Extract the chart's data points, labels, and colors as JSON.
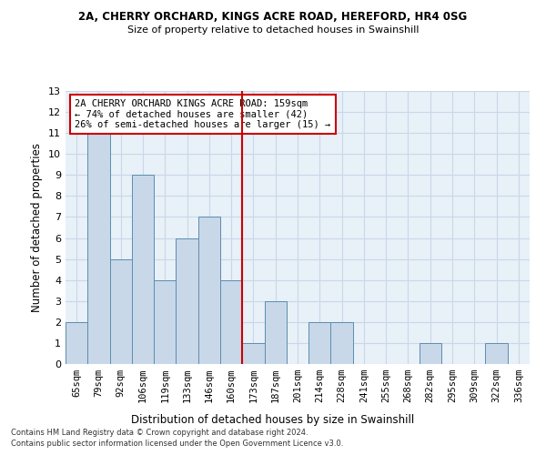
{
  "title1": "2A, CHERRY ORCHARD, KINGS ACRE ROAD, HEREFORD, HR4 0SG",
  "title2": "Size of property relative to detached houses in Swainshill",
  "xlabel": "Distribution of detached houses by size in Swainshill",
  "ylabel": "Number of detached properties",
  "categories": [
    "65sqm",
    "79sqm",
    "92sqm",
    "106sqm",
    "119sqm",
    "133sqm",
    "146sqm",
    "160sqm",
    "173sqm",
    "187sqm",
    "201sqm",
    "214sqm",
    "228sqm",
    "241sqm",
    "255sqm",
    "268sqm",
    "282sqm",
    "295sqm",
    "309sqm",
    "322sqm",
    "336sqm"
  ],
  "values": [
    2,
    11,
    5,
    9,
    4,
    6,
    7,
    4,
    1,
    3,
    0,
    2,
    2,
    0,
    0,
    0,
    1,
    0,
    0,
    1,
    0
  ],
  "bar_color": "#c8d8e8",
  "bar_edge_color": "#5b8db0",
  "reference_line_x": 7,
  "annotation_text": "2A CHERRY ORCHARD KINGS ACRE ROAD: 159sqm\n← 74% of detached houses are smaller (42)\n26% of semi-detached houses are larger (15) →",
  "annotation_box_color": "#ffffff",
  "annotation_box_edge_color": "#cc0000",
  "ref_line_color": "#cc0000",
  "ylim": [
    0,
    13
  ],
  "yticks": [
    0,
    1,
    2,
    3,
    4,
    5,
    6,
    7,
    8,
    9,
    10,
    11,
    12,
    13
  ],
  "grid_color": "#c8d8e8",
  "bg_color": "#e8f0f8",
  "footer1": "Contains HM Land Registry data © Crown copyright and database right 2024.",
  "footer2": "Contains public sector information licensed under the Open Government Licence v3.0."
}
